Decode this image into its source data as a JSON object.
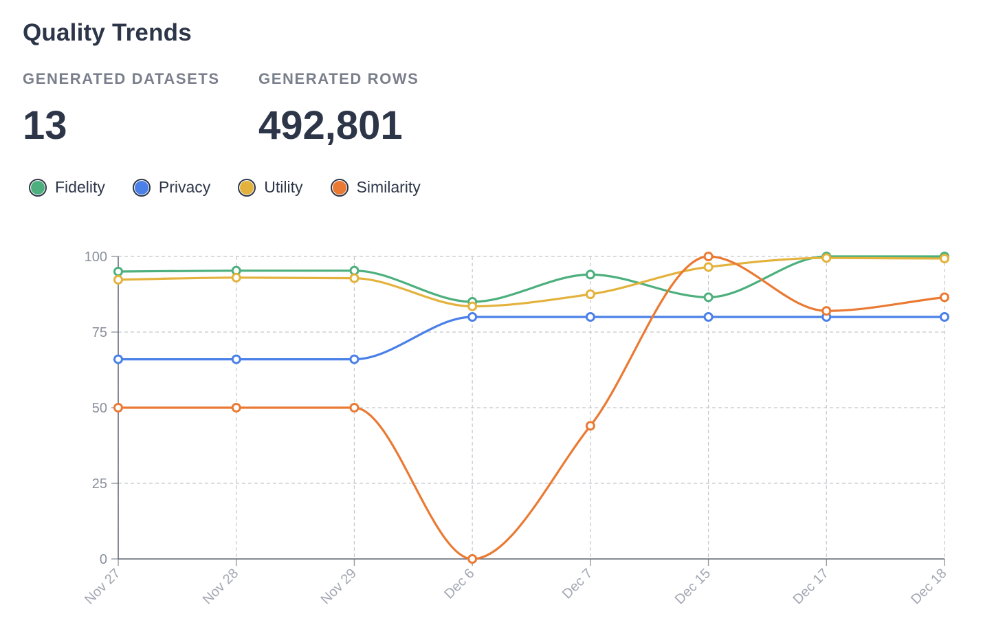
{
  "header": {
    "title": "Quality Trends"
  },
  "stats": [
    {
      "label": "GENERATED DATASETS",
      "value": "13"
    },
    {
      "label": "GENERATED ROWS",
      "value": "492,801"
    }
  ],
  "legend": [
    {
      "label": "Fidelity",
      "color": "#4caf7d"
    },
    {
      "label": "Privacy",
      "color": "#4a80e8"
    },
    {
      "label": "Utility",
      "color": "#e3b23c"
    },
    {
      "label": "Similarity",
      "color": "#ea7a33"
    }
  ],
  "chart_data": {
    "type": "line",
    "title": "",
    "xlabel": "",
    "ylabel": "",
    "ylim": [
      0,
      100
    ],
    "yticks": [
      0,
      25,
      50,
      75,
      100
    ],
    "grid": true,
    "categories": [
      "Nov 27",
      "Nov 28",
      "Nov 29",
      "Dec 6",
      "Dec 7",
      "Dec 15",
      "Dec 17",
      "Dec 18"
    ],
    "series": [
      {
        "name": "Fidelity",
        "color": "#4caf7d",
        "values": [
          95,
          95.3,
          95.3,
          85,
          94,
          86.5,
          100,
          100
        ]
      },
      {
        "name": "Privacy",
        "color": "#4a80e8",
        "values": [
          66,
          66,
          66,
          80,
          80,
          80,
          80,
          80
        ]
      },
      {
        "name": "Utility",
        "color": "#e3b23c",
        "values": [
          92.3,
          93,
          92.8,
          83.5,
          87.5,
          96.5,
          99.5,
          99.3
        ]
      },
      {
        "name": "Similarity",
        "color": "#ea7a33",
        "values": [
          50,
          50,
          50,
          0,
          44,
          100,
          82,
          86.5
        ]
      }
    ]
  }
}
